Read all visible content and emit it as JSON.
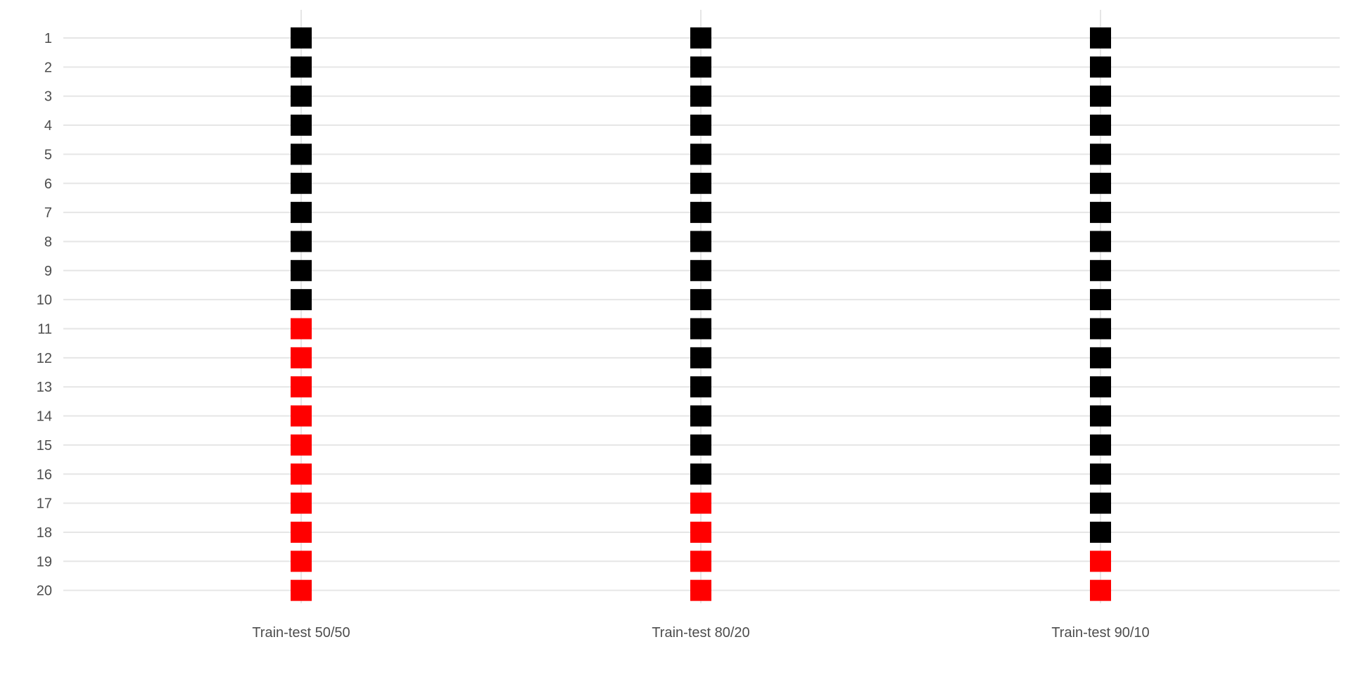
{
  "chart_data": {
    "type": "heatmap",
    "title": "",
    "xlabel": "",
    "ylabel": "",
    "categories": [
      "Train-test 50/50",
      "Train-test 80/20",
      "Train-test 90/10"
    ],
    "rows": [
      "1",
      "2",
      "3",
      "4",
      "5",
      "6",
      "7",
      "8",
      "9",
      "10",
      "11",
      "12",
      "13",
      "14",
      "15",
      "16",
      "17",
      "18",
      "19",
      "20"
    ],
    "train_rows": [
      10,
      16,
      18
    ],
    "colors": {
      "train": "#000000",
      "test": "#ff0000",
      "grid": "#e6e6e6",
      "text": "#4d4d4d"
    },
    "grid": true,
    "legend": "none"
  }
}
